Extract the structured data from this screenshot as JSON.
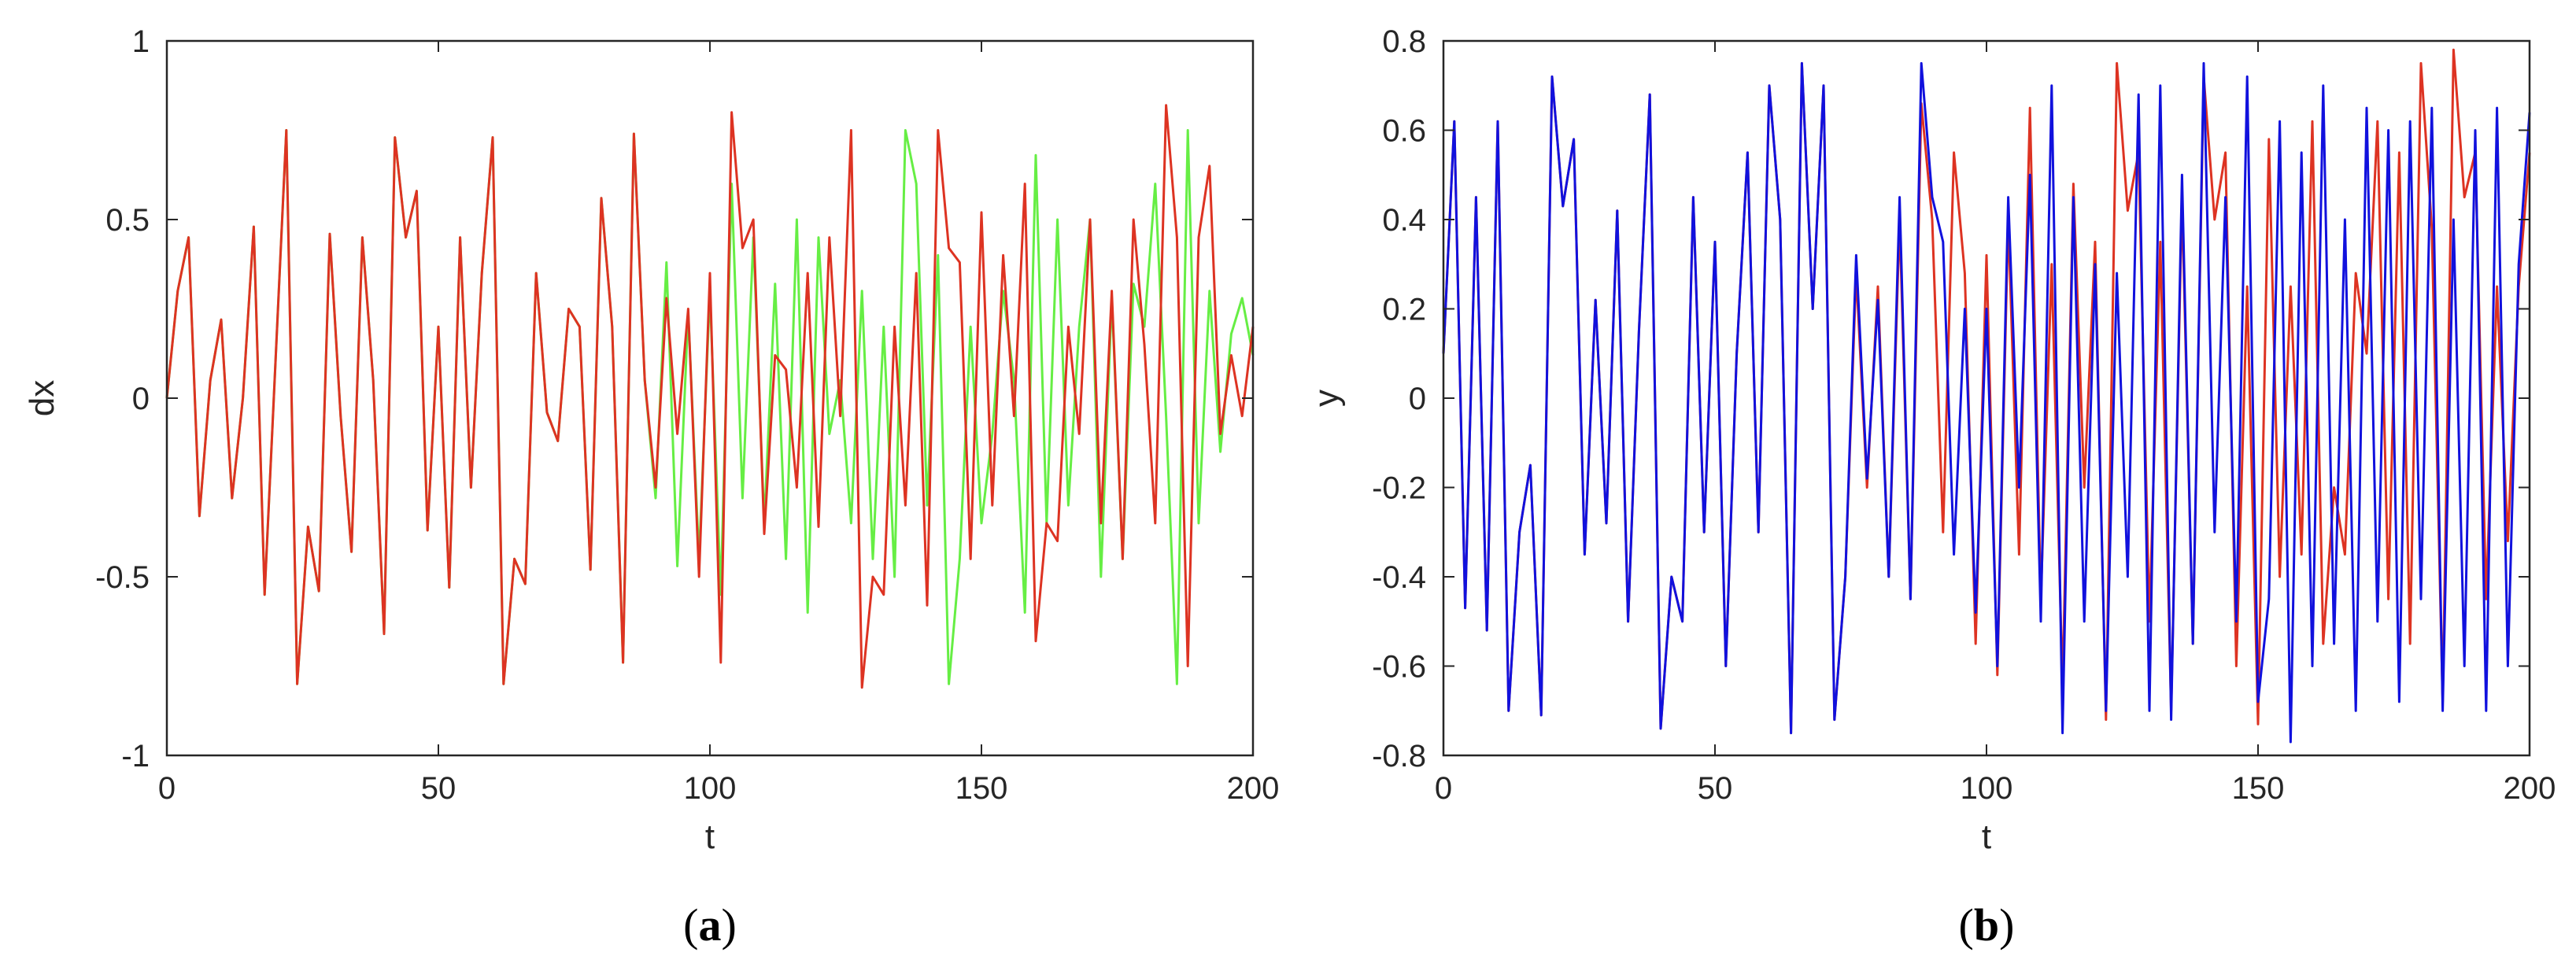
{
  "chart_data": [
    {
      "type": "line",
      "caption_open": "(",
      "caption_letter": "a",
      "caption_close": ")",
      "xlabel": "t",
      "ylabel": "dx",
      "xlim": [
        0,
        200
      ],
      "ylim": [
        -1,
        1
      ],
      "xticks": [
        0,
        50,
        100,
        150,
        200
      ],
      "yticks": [
        -1,
        -0.5,
        0,
        0.5,
        1
      ],
      "xtick_labels": [
        "0",
        "50",
        "100",
        "150",
        "200"
      ],
      "ytick_labels": [
        "-1",
        "-0.5",
        "0",
        "0.5",
        "1"
      ],
      "grid": false,
      "series": [
        {
          "color": "#66ee44",
          "x": [
            0,
            2,
            4,
            6,
            8,
            10,
            12,
            14,
            16,
            18,
            20,
            22,
            24,
            26,
            28,
            30,
            32,
            34,
            36,
            38,
            40,
            42,
            44,
            46,
            48,
            50,
            52,
            54,
            56,
            58,
            60,
            62,
            64,
            66,
            68,
            70,
            72,
            74,
            76,
            78,
            80,
            82,
            84,
            86,
            88,
            90,
            92,
            94,
            96,
            98,
            100,
            102,
            104,
            106,
            108,
            110,
            112,
            114,
            116,
            118,
            120,
            122,
            124,
            126,
            128,
            130,
            132,
            134,
            136,
            138,
            140,
            142,
            144,
            146,
            148,
            150,
            152,
            154,
            156,
            158,
            160,
            162,
            164,
            166,
            168,
            170,
            172,
            174,
            176,
            178,
            180,
            182,
            184,
            186,
            188,
            190,
            192,
            194,
            196,
            198,
            200
          ],
          "y": [
            0,
            0.3,
            0.45,
            -0.33,
            0.05,
            0.22,
            -0.28,
            0,
            0.48,
            -0.55,
            0.1,
            0.75,
            -0.8,
            -0.36,
            -0.54,
            0.46,
            -0.05,
            -0.43,
            0.45,
            0.05,
            -0.66,
            0.73,
            0.45,
            0.58,
            -0.37,
            0.2,
            -0.53,
            0.45,
            -0.25,
            0.35,
            0.73,
            -0.8,
            -0.45,
            -0.52,
            0.35,
            -0.04,
            -0.12,
            0.25,
            0.2,
            -0.48,
            0.56,
            0.2,
            -0.74,
            0.74,
            0.05,
            -0.28,
            0.38,
            -0.47,
            0.24,
            -0.45,
            0.3,
            -0.55,
            0.6,
            -0.28,
            0.45,
            -0.35,
            0.32,
            -0.45,
            0.5,
            -0.6,
            0.45,
            -0.1,
            0.05,
            -0.35,
            0.3,
            -0.45,
            0.2,
            -0.5,
            0.75,
            0.6,
            -0.3,
            0.4,
            -0.8,
            -0.45,
            0.2,
            -0.35,
            -0.1,
            0.3,
            0.05,
            -0.6,
            0.68,
            -0.35,
            0.5,
            -0.3,
            0.2,
            0.5,
            -0.5,
            0.28,
            -0.45,
            0.32,
            0.2,
            0.6,
            -0.05,
            -0.8,
            0.75,
            -0.35,
            0.3,
            -0.15,
            0.18,
            0.28,
            0.12
          ]
        },
        {
          "color": "#dd3322",
          "x": [
            0,
            2,
            4,
            6,
            8,
            10,
            12,
            14,
            16,
            18,
            20,
            22,
            24,
            26,
            28,
            30,
            32,
            34,
            36,
            38,
            40,
            42,
            44,
            46,
            48,
            50,
            52,
            54,
            56,
            58,
            60,
            62,
            64,
            66,
            68,
            70,
            72,
            74,
            76,
            78,
            80,
            82,
            84,
            86,
            88,
            90,
            92,
            94,
            96,
            98,
            100,
            102,
            104,
            106,
            108,
            110,
            112,
            114,
            116,
            118,
            120,
            122,
            124,
            126,
            128,
            130,
            132,
            134,
            136,
            138,
            140,
            142,
            144,
            146,
            148,
            150,
            152,
            154,
            156,
            158,
            160,
            162,
            164,
            166,
            168,
            170,
            172,
            174,
            176,
            178,
            180,
            182,
            184,
            186,
            188,
            190,
            192,
            194,
            196,
            198,
            200
          ],
          "y": [
            0,
            0.3,
            0.45,
            -0.33,
            0.05,
            0.22,
            -0.28,
            0,
            0.48,
            -0.55,
            0.1,
            0.75,
            -0.8,
            -0.36,
            -0.54,
            0.46,
            -0.05,
            -0.43,
            0.45,
            0.05,
            -0.66,
            0.73,
            0.45,
            0.58,
            -0.37,
            0.2,
            -0.53,
            0.45,
            -0.25,
            0.35,
            0.73,
            -0.8,
            -0.45,
            -0.52,
            0.35,
            -0.04,
            -0.12,
            0.25,
            0.2,
            -0.48,
            0.56,
            0.2,
            -0.74,
            0.74,
            0.05,
            -0.25,
            0.28,
            -0.1,
            0.25,
            -0.5,
            0.35,
            -0.74,
            0.8,
            0.42,
            0.5,
            -0.38,
            0.12,
            0.08,
            -0.25,
            0.35,
            -0.36,
            0.45,
            -0.05,
            0.75,
            -0.81,
            -0.5,
            -0.55,
            0.2,
            -0.3,
            0.35,
            -0.58,
            0.75,
            0.42,
            0.38,
            -0.45,
            0.52,
            -0.3,
            0.4,
            -0.05,
            0.6,
            -0.68,
            -0.35,
            -0.4,
            0.2,
            -0.1,
            0.5,
            -0.35,
            0.3,
            -0.45,
            0.5,
            0.15,
            -0.35,
            0.82,
            0.45,
            -0.75,
            0.45,
            0.65,
            -0.1,
            0.12,
            -0.05,
            0.2
          ]
        }
      ]
    },
    {
      "type": "line",
      "caption_open": "(",
      "caption_letter": "b",
      "caption_close": ")",
      "xlabel": "t",
      "ylabel": "y",
      "xlim": [
        0,
        200
      ],
      "ylim": [
        -0.8,
        0.8
      ],
      "xticks": [
        0,
        50,
        100,
        150,
        200
      ],
      "yticks": [
        -0.8,
        -0.6,
        -0.4,
        -0.2,
        0,
        0.2,
        0.4,
        0.6,
        0.8
      ],
      "xtick_labels": [
        "0",
        "50",
        "100",
        "150",
        "200"
      ],
      "ytick_labels": [
        "-0.8",
        "-0.6",
        "-0.4",
        "-0.2",
        "0",
        "0.2",
        "0.4",
        "0.6",
        "0.8"
      ],
      "grid": false,
      "series": [
        {
          "color": "#dd3322",
          "x": [
            0,
            2,
            4,
            6,
            8,
            10,
            12,
            14,
            16,
            18,
            20,
            22,
            24,
            26,
            28,
            30,
            32,
            34,
            36,
            38,
            40,
            42,
            44,
            46,
            48,
            50,
            52,
            54,
            56,
            58,
            60,
            62,
            64,
            66,
            68,
            70,
            72,
            74,
            76,
            78,
            80,
            82,
            84,
            86,
            88,
            90,
            92,
            94,
            96,
            98,
            100,
            102,
            104,
            106,
            108,
            110,
            112,
            114,
            116,
            118,
            120,
            122,
            124,
            126,
            128,
            130,
            132,
            134,
            136,
            138,
            140,
            142,
            144,
            146,
            148,
            150,
            152,
            154,
            156,
            158,
            160,
            162,
            164,
            166,
            168,
            170,
            172,
            174,
            176,
            178,
            180,
            182,
            184,
            186,
            188,
            190,
            192,
            194,
            196,
            198,
            200
          ],
          "y": [
            0.1,
            0.62,
            -0.47,
            0.45,
            -0.52,
            0.62,
            -0.7,
            -0.3,
            -0.15,
            -0.71,
            0.72,
            0.43,
            0.58,
            -0.35,
            0.22,
            -0.28,
            0.42,
            -0.5,
            0.15,
            0.68,
            -0.74,
            -0.4,
            -0.5,
            0.45,
            -0.3,
            0.35,
            -0.6,
            0.1,
            0.55,
            -0.3,
            0.7,
            0.4,
            -0.75,
            0.75,
            0.2,
            0.7,
            -0.72,
            -0.4,
            0.28,
            -0.2,
            0.25,
            -0.4,
            0.4,
            -0.45,
            0.66,
            0.4,
            -0.3,
            0.55,
            0.28,
            -0.55,
            0.32,
            -0.62,
            0.4,
            -0.35,
            0.65,
            -0.45,
            0.3,
            -0.65,
            0.48,
            -0.2,
            0.35,
            -0.72,
            0.75,
            0.42,
            0.55,
            -0.5,
            0.35,
            -0.7,
            0.45,
            -0.55,
            0.72,
            0.4,
            0.55,
            -0.6,
            0.25,
            -0.73,
            0.58,
            -0.4,
            0.25,
            -0.35,
            0.62,
            -0.55,
            -0.2,
            -0.35,
            0.28,
            0.1,
            0.62,
            -0.45,
            0.55,
            -0.55,
            0.75,
            0.38,
            -0.68,
            0.78,
            0.45,
            0.55,
            -0.45,
            0.25,
            -0.32,
            0.25,
            0.55
          ]
        },
        {
          "color": "#1111dd",
          "x": [
            0,
            2,
            4,
            6,
            8,
            10,
            12,
            14,
            16,
            18,
            20,
            22,
            24,
            26,
            28,
            30,
            32,
            34,
            36,
            38,
            40,
            42,
            44,
            46,
            48,
            50,
            52,
            54,
            56,
            58,
            60,
            62,
            64,
            66,
            68,
            70,
            72,
            74,
            76,
            78,
            80,
            82,
            84,
            86,
            88,
            90,
            92,
            94,
            96,
            98,
            100,
            102,
            104,
            106,
            108,
            110,
            112,
            114,
            116,
            118,
            120,
            122,
            124,
            126,
            128,
            130,
            132,
            134,
            136,
            138,
            140,
            142,
            144,
            146,
            148,
            150,
            152,
            154,
            156,
            158,
            160,
            162,
            164,
            166,
            168,
            170,
            172,
            174,
            176,
            178,
            180,
            182,
            184,
            186,
            188,
            190,
            192,
            194,
            196,
            198,
            200
          ],
          "y": [
            0.1,
            0.62,
            -0.47,
            0.45,
            -0.52,
            0.62,
            -0.7,
            -0.3,
            -0.15,
            -0.71,
            0.72,
            0.43,
            0.58,
            -0.35,
            0.22,
            -0.28,
            0.42,
            -0.5,
            0.15,
            0.68,
            -0.74,
            -0.4,
            -0.5,
            0.45,
            -0.3,
            0.35,
            -0.6,
            0.1,
            0.55,
            -0.3,
            0.7,
            0.4,
            -0.75,
            0.75,
            0.2,
            0.7,
            -0.72,
            -0.4,
            0.32,
            -0.18,
            0.22,
            -0.4,
            0.45,
            -0.45,
            0.75,
            0.45,
            0.35,
            -0.35,
            0.2,
            -0.48,
            0.2,
            -0.6,
            0.45,
            -0.2,
            0.5,
            -0.5,
            0.7,
            -0.75,
            0.45,
            -0.5,
            0.3,
            -0.7,
            0.28,
            -0.4,
            0.68,
            -0.7,
            0.7,
            -0.72,
            0.5,
            -0.55,
            0.75,
            -0.3,
            0.45,
            -0.5,
            0.72,
            -0.68,
            -0.45,
            0.62,
            -0.77,
            0.55,
            -0.6,
            0.7,
            -0.55,
            0.4,
            -0.7,
            0.65,
            -0.5,
            0.6,
            -0.68,
            0.62,
            -0.45,
            0.65,
            -0.7,
            0.4,
            -0.6,
            0.6,
            -0.7,
            0.65,
            -0.6,
            0.3,
            0.64
          ]
        }
      ]
    }
  ]
}
